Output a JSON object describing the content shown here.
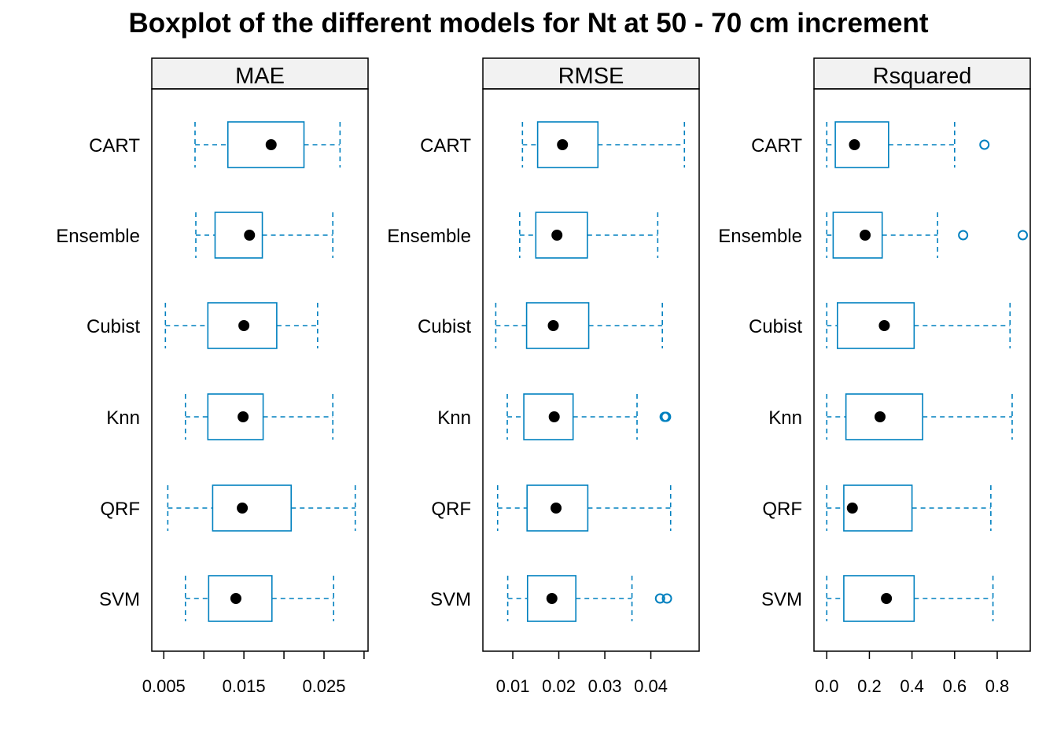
{
  "chart_data": {
    "type": "boxplot",
    "title": "Boxplot of the different models for Nt at 50 - 70 cm increment",
    "categories": [
      "CART",
      "Ensemble",
      "Cubist",
      "Knn",
      "QRF",
      "SVM"
    ],
    "colors": {
      "box": "#0080BF",
      "median_dot": "#000000",
      "strip_bg": "#F2F2F2"
    },
    "panels": [
      {
        "name": "MAE",
        "xlim": [
          0.0035,
          0.0305
        ],
        "ticks": [
          0.005,
          0.01,
          0.015,
          0.02,
          0.025,
          0.03
        ],
        "tick_labels": [
          "0.005",
          "",
          "0.015",
          "",
          "0.025",
          ""
        ],
        "boxes": [
          {
            "model": "CART",
            "whisker_low": 0.0089,
            "q1": 0.013,
            "median": 0.0184,
            "q3": 0.0225,
            "whisker_high": 0.027,
            "outliers": []
          },
          {
            "model": "Ensemble",
            "whisker_low": 0.009,
            "q1": 0.0114,
            "median": 0.0157,
            "q3": 0.0173,
            "whisker_high": 0.0261,
            "outliers": []
          },
          {
            "model": "Cubist",
            "whisker_low": 0.0052,
            "q1": 0.0105,
            "median": 0.015,
            "q3": 0.0191,
            "whisker_high": 0.0242,
            "outliers": []
          },
          {
            "model": "Knn",
            "whisker_low": 0.0077,
            "q1": 0.0105,
            "median": 0.0149,
            "q3": 0.0174,
            "whisker_high": 0.0261,
            "outliers": []
          },
          {
            "model": "QRF",
            "whisker_low": 0.0055,
            "q1": 0.0111,
            "median": 0.0148,
            "q3": 0.0209,
            "whisker_high": 0.0289,
            "outliers": []
          },
          {
            "model": "SVM",
            "whisker_low": 0.0077,
            "q1": 0.0106,
            "median": 0.014,
            "q3": 0.0185,
            "whisker_high": 0.0262,
            "outliers": []
          }
        ]
      },
      {
        "name": "RMSE",
        "xlim": [
          0.0035,
          0.0505
        ],
        "ticks": [
          0.01,
          0.02,
          0.03,
          0.04
        ],
        "tick_labels": [
          "0.01",
          "0.02",
          "0.03",
          "0.04"
        ],
        "boxes": [
          {
            "model": "CART",
            "whisker_low": 0.0121,
            "q1": 0.0154,
            "median": 0.0208,
            "q3": 0.0285,
            "whisker_high": 0.0473,
            "outliers": []
          },
          {
            "model": "Ensemble",
            "whisker_low": 0.0115,
            "q1": 0.015,
            "median": 0.0196,
            "q3": 0.0262,
            "whisker_high": 0.0415,
            "outliers": []
          },
          {
            "model": "Cubist",
            "whisker_low": 0.0063,
            "q1": 0.013,
            "median": 0.0188,
            "q3": 0.0265,
            "whisker_high": 0.0425,
            "outliers": []
          },
          {
            "model": "Knn",
            "whisker_low": 0.0088,
            "q1": 0.0124,
            "median": 0.019,
            "q3": 0.0231,
            "whisker_high": 0.037,
            "outliers": [
              0.043,
              0.0433
            ]
          },
          {
            "model": "QRF",
            "whisker_low": 0.0067,
            "q1": 0.0131,
            "median": 0.0194,
            "q3": 0.0263,
            "whisker_high": 0.0443,
            "outliers": []
          },
          {
            "model": "SVM",
            "whisker_low": 0.0089,
            "q1": 0.0132,
            "median": 0.0185,
            "q3": 0.0237,
            "whisker_high": 0.0359,
            "outliers": [
              0.042,
              0.0435
            ]
          }
        ]
      },
      {
        "name": "Rsquared",
        "xlim": [
          -0.06,
          0.955
        ],
        "ticks": [
          0.0,
          0.2,
          0.4,
          0.6,
          0.8
        ],
        "tick_labels": [
          "0.0",
          "0.2",
          "0.4",
          "0.6",
          "0.8"
        ],
        "boxes": [
          {
            "model": "CART",
            "whisker_low": 0.0,
            "q1": 0.04,
            "median": 0.13,
            "q3": 0.29,
            "whisker_high": 0.6,
            "outliers": [
              0.74
            ]
          },
          {
            "model": "Ensemble",
            "whisker_low": 0.0,
            "q1": 0.03,
            "median": 0.18,
            "q3": 0.26,
            "whisker_high": 0.52,
            "outliers": [
              0.64,
              0.92
            ]
          },
          {
            "model": "Cubist",
            "whisker_low": 0.0,
            "q1": 0.05,
            "median": 0.27,
            "q3": 0.41,
            "whisker_high": 0.86,
            "outliers": []
          },
          {
            "model": "Knn",
            "whisker_low": 0.0,
            "q1": 0.09,
            "median": 0.25,
            "q3": 0.45,
            "whisker_high": 0.87,
            "outliers": []
          },
          {
            "model": "QRF",
            "whisker_low": 0.0,
            "q1": 0.08,
            "median": 0.12,
            "q3": 0.4,
            "whisker_high": 0.77,
            "outliers": []
          },
          {
            "model": "SVM",
            "whisker_low": 0.0,
            "q1": 0.08,
            "median": 0.28,
            "q3": 0.41,
            "whisker_high": 0.78,
            "outliers": []
          }
        ]
      }
    ]
  }
}
